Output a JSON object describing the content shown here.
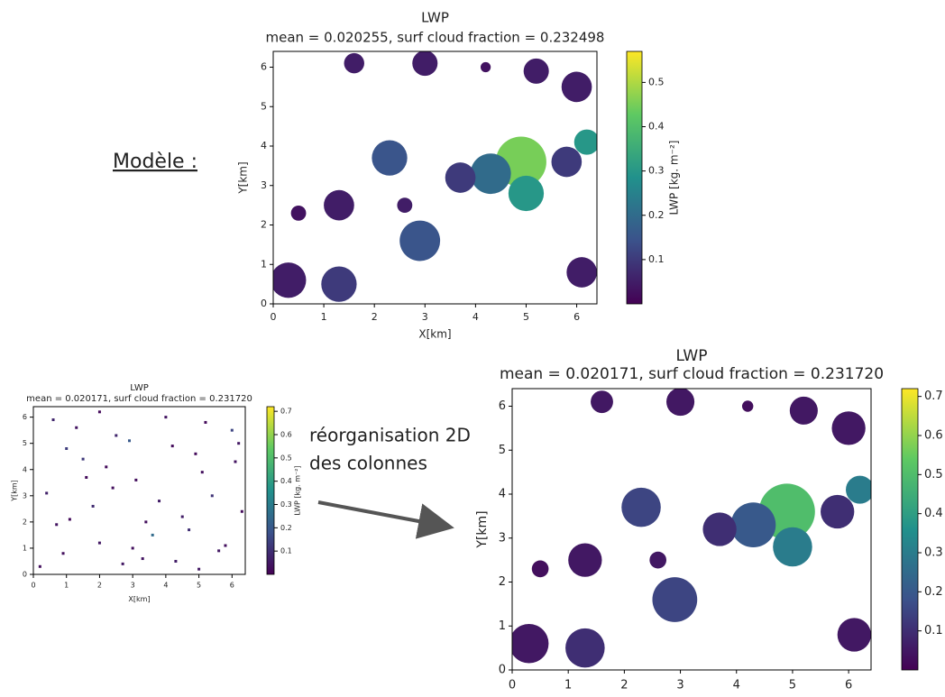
{
  "annotations": {
    "model": "Modèle :",
    "reorg": [
      "réorganisation 2D",
      "des colonnes"
    ]
  },
  "chart_data": [
    {
      "type": "heatmap",
      "title": "LWP",
      "subtitle": "mean = 0.020255, surf cloud fraction = 0.232498",
      "xlabel": "X[km]",
      "ylabel": "Y[km]",
      "colorbar_label": "LWP [kg. m⁻²]",
      "colormap": "viridis",
      "xlim": [
        0,
        6.4
      ],
      "ylim": [
        0,
        6.4
      ],
      "xticks": [
        0,
        1,
        2,
        3,
        4,
        5,
        6
      ],
      "yticks": [
        0,
        1,
        2,
        3,
        4,
        5,
        6
      ],
      "clim": [
        0,
        0.57
      ],
      "cticks": [
        0.1,
        0.2,
        0.3,
        0.4,
        0.5
      ],
      "x": [
        0.3,
        1.3,
        1.3,
        2.9,
        2.3,
        4.9,
        5.0,
        4.3,
        3.7,
        5.8,
        6.2,
        1.6,
        3.0,
        5.2,
        6.0,
        6.1,
        0.5,
        2.6,
        4.2
      ],
      "y": [
        0.6,
        0.5,
        2.5,
        1.6,
        3.7,
        3.6,
        2.8,
        3.3,
        3.2,
        3.6,
        4.1,
        6.1,
        6.1,
        5.9,
        5.5,
        0.8,
        2.3,
        2.5,
        6.0
      ],
      "sizes": [
        0.35,
        0.35,
        0.3,
        0.4,
        0.35,
        0.5,
        0.35,
        0.4,
        0.3,
        0.3,
        0.25,
        0.2,
        0.25,
        0.25,
        0.3,
        0.3,
        0.15,
        0.15,
        0.1
      ],
      "values": [
        0.05,
        0.1,
        0.05,
        0.15,
        0.15,
        0.45,
        0.3,
        0.2,
        0.1,
        0.1,
        0.3,
        0.05,
        0.05,
        0.05,
        0.05,
        0.05,
        0.03,
        0.05,
        0.03
      ]
    },
    {
      "type": "scatter",
      "title": "LWP",
      "subtitle": "mean = 0.020171, surf cloud fraction = 0.231720",
      "xlabel": "X[km]",
      "ylabel": "Y[km]",
      "colorbar_label": "LWP [kg. m⁻²]",
      "colormap": "viridis",
      "xlim": [
        0,
        6.4
      ],
      "ylim": [
        0,
        6.4
      ],
      "xticks": [
        0,
        1,
        2,
        3,
        4,
        5,
        6
      ],
      "yticks": [
        0,
        1,
        2,
        3,
        4,
        5,
        6
      ],
      "clim": [
        0,
        0.72
      ],
      "cticks": [
        0.1,
        0.2,
        0.3,
        0.4,
        0.5,
        0.6,
        0.7
      ],
      "x": [
        0.2,
        0.6,
        1.1,
        1.5,
        2.0,
        2.4,
        2.9,
        3.3,
        3.8,
        4.2,
        4.7,
        5.1,
        5.6,
        6.0,
        6.3,
        0.4,
        0.9,
        1.3,
        1.8,
        2.2,
        2.7,
        3.1,
        3.6,
        4.0,
        4.5,
        4.9,
        5.4,
        5.8,
        6.2,
        0.7,
        1.6,
        2.5,
        3.4,
        4.3,
        5.2,
        6.1,
        1.0,
        3.0,
        5.0,
        2.0
      ],
      "y": [
        0.3,
        5.9,
        2.1,
        4.4,
        1.2,
        3.3,
        5.1,
        0.6,
        2.8,
        4.9,
        1.7,
        3.9,
        0.9,
        5.5,
        2.4,
        3.1,
        0.8,
        5.6,
        2.6,
        4.1,
        0.4,
        3.6,
        1.5,
        6.0,
        2.2,
        4.6,
        3.0,
        1.1,
        5.0,
        1.9,
        3.7,
        5.3,
        2.0,
        0.5,
        5.8,
        4.3,
        4.8,
        1.0,
        0.2,
        6.2
      ],
      "values": [
        0.03,
        0.08,
        0.02,
        0.12,
        0.05,
        0.03,
        0.2,
        0.04,
        0.06,
        0.02,
        0.1,
        0.03,
        0.05,
        0.15,
        0.02,
        0.07,
        0.03,
        0.04,
        0.09,
        0.02,
        0.05,
        0.03,
        0.25,
        0.04,
        0.06,
        0.02,
        0.11,
        0.03,
        0.05,
        0.04,
        0.02,
        0.08,
        0.03,
        0.06,
        0.02,
        0.04,
        0.13,
        0.03,
        0.05,
        0.02
      ]
    },
    {
      "type": "heatmap",
      "title": "LWP",
      "subtitle": "mean = 0.020171, surf cloud fraction = 0.231720",
      "ylabel": "Y[km]",
      "colormap": "viridis",
      "xlim": [
        0,
        6.4
      ],
      "ylim": [
        0,
        6.4
      ],
      "xticks": [
        0,
        1,
        2,
        3,
        4,
        5,
        6
      ],
      "yticks": [
        0,
        1,
        2,
        3,
        4,
        5,
        6
      ],
      "clim": [
        0,
        0.72
      ],
      "cticks": [
        0.1,
        0.2,
        0.3,
        0.4,
        0.5,
        0.6,
        0.7
      ],
      "x": [
        0.3,
        1.3,
        1.3,
        2.9,
        2.3,
        4.9,
        5.0,
        4.3,
        3.7,
        5.8,
        6.2,
        1.6,
        3.0,
        5.2,
        6.0,
        6.1,
        0.5,
        2.6,
        4.2
      ],
      "y": [
        0.6,
        0.5,
        2.5,
        1.6,
        3.7,
        3.6,
        2.8,
        3.3,
        3.2,
        3.6,
        4.1,
        6.1,
        6.1,
        5.9,
        5.5,
        0.8,
        2.3,
        2.5,
        6.0
      ],
      "sizes": [
        0.35,
        0.35,
        0.3,
        0.4,
        0.35,
        0.5,
        0.35,
        0.4,
        0.3,
        0.3,
        0.25,
        0.2,
        0.25,
        0.25,
        0.3,
        0.3,
        0.15,
        0.15,
        0.1
      ],
      "values": [
        0.05,
        0.1,
        0.05,
        0.15,
        0.15,
        0.5,
        0.3,
        0.2,
        0.1,
        0.1,
        0.3,
        0.05,
        0.05,
        0.05,
        0.05,
        0.05,
        0.03,
        0.05,
        0.03
      ]
    }
  ]
}
